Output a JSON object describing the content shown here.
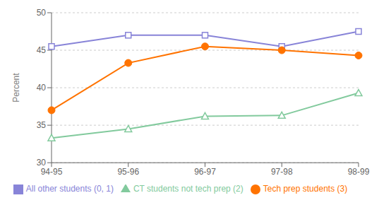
{
  "chart_data": {
    "type": "line",
    "categories": [
      "94-95",
      "95-96",
      "96-97",
      "97-98",
      "98-99"
    ],
    "series": [
      {
        "name": "All other students (0, 1)",
        "color": "#8884d8",
        "marker": "square",
        "values": [
          45.5,
          47.0,
          47.0,
          45.5,
          47.5
        ]
      },
      {
        "name": "CT students not tech prep (2)",
        "color": "#82ca9d",
        "marker": "triangle",
        "values": [
          33.3,
          34.5,
          36.2,
          36.3,
          39.3
        ]
      },
      {
        "name": "Tech prep students (3)",
        "color": "#ff7300",
        "marker": "circle",
        "values": [
          37.0,
          43.3,
          45.5,
          45.0,
          44.3
        ]
      }
    ],
    "ylabel": "Percent",
    "ylim": [
      30,
      50
    ],
    "yticks": [
      30,
      35,
      40,
      45,
      50
    ],
    "grid": true,
    "legend": "bottom"
  }
}
